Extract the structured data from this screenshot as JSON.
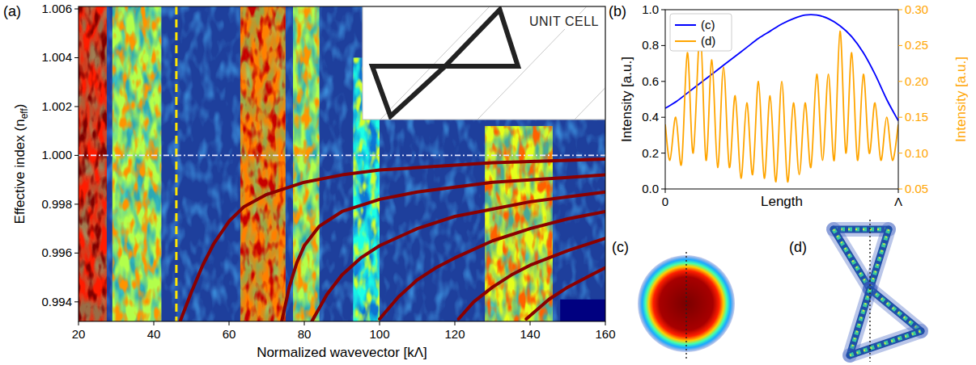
{
  "chart_data": [
    {
      "type": "heatmap_line",
      "panel_label": "(a)",
      "xlabel": "Normalized wavevector [kΛ]",
      "ylabel": {
        "text": "Effective index (n",
        "sub": "eff",
        "tail": ")"
      },
      "inset_label": "UNIT CELL",
      "xlim": [
        20,
        160
      ],
      "xticks": [
        20,
        40,
        60,
        80,
        100,
        120,
        140,
        160
      ],
      "ylim": [
        0.9932,
        1.0061
      ],
      "yticks": [
        0.994,
        0.996,
        0.998,
        {
          "value": 1.0,
          "label": "1.000"
        },
        1.002,
        1.004,
        1.006
      ],
      "color": "#8b0000",
      "series": [
        {
          "x": [
            47,
            50,
            53,
            56,
            60,
            64,
            70,
            80,
            90,
            100,
            110,
            120,
            130,
            140,
            150,
            160
          ],
          "values": [
            0.9932,
            0.9944,
            0.9955,
            0.9964,
            0.9973,
            0.9979,
            0.9984,
            0.9989,
            0.9992,
            0.9994,
            0.9995,
            0.9996,
            0.9997,
            0.99975,
            0.9998,
            0.99985
          ]
        },
        {
          "x": [
            74,
            76,
            78,
            80,
            84,
            90,
            100,
            110,
            120,
            130,
            140,
            150,
            160
          ],
          "values": [
            0.9932,
            0.9946,
            0.9956,
            0.9963,
            0.9971,
            0.9977,
            0.9982,
            0.9985,
            0.9987,
            0.9989,
            0.999,
            0.9991,
            0.9992
          ]
        },
        {
          "x": [
            82,
            86,
            90,
            95,
            100,
            110,
            120,
            130,
            140,
            150,
            160
          ],
          "values": [
            0.9932,
            0.9943,
            0.9951,
            0.9958,
            0.9963,
            0.997,
            0.9975,
            0.9978,
            0.9981,
            0.9983,
            0.9985
          ]
        },
        {
          "x": [
            100,
            105,
            110,
            115,
            120,
            130,
            140,
            150,
            160
          ],
          "values": [
            0.9933,
            0.9942,
            0.9949,
            0.9954,
            0.9958,
            0.9965,
            0.997,
            0.9974,
            0.9977
          ]
        },
        {
          "x": [
            121,
            125,
            130,
            135,
            140,
            150,
            160
          ],
          "values": [
            0.9933,
            0.994,
            0.9946,
            0.9951,
            0.9955,
            0.9961,
            0.9966
          ]
        },
        {
          "x": [
            139,
            145,
            150,
            155,
            160
          ],
          "values": [
            0.9933,
            0.9941,
            0.9946,
            0.995,
            0.9954
          ]
        }
      ],
      "bands": [
        {
          "k": [
            20,
            27.5
          ],
          "n": [
            0.9932,
            1.0061
          ],
          "level": 0.85
        },
        {
          "k": [
            29,
            42
          ],
          "n": [
            0.9932,
            1.0061
          ],
          "level": 0.55
        },
        {
          "k": [
            63,
            75
          ],
          "n": [
            0.9932,
            1.0061
          ],
          "level": 0.75
        },
        {
          "k": [
            77,
            84
          ],
          "n": [
            0.9932,
            1.0061
          ],
          "level": 0.55
        },
        {
          "k": [
            93,
            100
          ],
          "n": [
            0.9932,
            1.004
          ],
          "level": 0.4
        },
        {
          "k": [
            128,
            146
          ],
          "n": [
            0.9932,
            1.0012
          ],
          "level": 0.6
        },
        {
          "k": [
            148,
            160
          ],
          "n": [
            0.9932,
            0.9941
          ],
          "level": 0.0
        }
      ],
      "reference_lines": [
        {
          "axis": "x",
          "value": 46,
          "color": "#ffe600"
        },
        {
          "axis": "y",
          "value": 1.0,
          "color": "#e8e8ff"
        }
      ]
    },
    {
      "type": "line",
      "panel_label": "(b)",
      "xlabel": "Length",
      "ylabel": "Intensity [a.u.]",
      "y2label": "Intensity [a.u.]",
      "xlim": [
        0,
        1
      ],
      "xticks": [
        0,
        {
          "value": 1,
          "label": "Λ"
        }
      ],
      "ylim": [
        0,
        1
      ],
      "yticks": [
        {
          "value": 0,
          "label": "0.0"
        },
        0.2,
        0.4,
        0.6,
        0.8,
        {
          "value": 1,
          "label": "1.0"
        }
      ],
      "y2lim": [
        0.05,
        0.3
      ],
      "y2ticks": [
        0.05,
        {
          "value": 0.1,
          "label": "0.10"
        },
        0.15,
        {
          "value": 0.2,
          "label": "0.20"
        },
        0.25,
        {
          "value": 0.3,
          "label": "0.30"
        }
      ],
      "legend": "upper left",
      "series": [
        {
          "name": "(c)",
          "color": "#0000ff",
          "x": [
            0,
            0.05,
            0.1,
            0.15,
            0.2,
            0.25,
            0.3,
            0.35,
            0.4,
            0.45,
            0.5,
            0.55,
            0.6,
            0.65,
            0.7,
            0.75,
            0.8,
            0.85,
            0.9,
            0.95,
            1
          ],
          "values": [
            0.45,
            0.49,
            0.54,
            0.59,
            0.64,
            0.69,
            0.74,
            0.79,
            0.84,
            0.88,
            0.92,
            0.95,
            0.97,
            0.97,
            0.95,
            0.91,
            0.85,
            0.76,
            0.64,
            0.5,
            0.38
          ]
        },
        {
          "name": "(d)",
          "color": "#ffa500",
          "axis": "y2",
          "x": [
            0,
            0.02,
            0.045,
            0.07,
            0.095,
            0.12,
            0.15,
            0.175,
            0.2,
            0.225,
            0.25,
            0.275,
            0.3,
            0.325,
            0.35,
            0.375,
            0.4,
            0.425,
            0.45,
            0.475,
            0.5,
            0.525,
            0.55,
            0.575,
            0.6,
            0.625,
            0.65,
            0.675,
            0.7,
            0.725,
            0.75,
            0.775,
            0.8,
            0.825,
            0.85,
            0.875,
            0.9,
            0.925,
            0.95,
            0.975,
            1
          ],
          "values": [
            0.14,
            0.09,
            0.15,
            0.085,
            0.24,
            0.1,
            0.27,
            0.09,
            0.23,
            0.08,
            0.22,
            0.08,
            0.18,
            0.065,
            0.17,
            0.07,
            0.2,
            0.065,
            0.18,
            0.06,
            0.2,
            0.06,
            0.17,
            0.07,
            0.17,
            0.08,
            0.21,
            0.09,
            0.21,
            0.09,
            0.27,
            0.1,
            0.24,
            0.09,
            0.21,
            0.1,
            0.17,
            0.09,
            0.15,
            0.09,
            0.14
          ]
        }
      ]
    }
  ],
  "images": [
    {
      "label": "(c)"
    },
    {
      "label": "(d)"
    }
  ]
}
